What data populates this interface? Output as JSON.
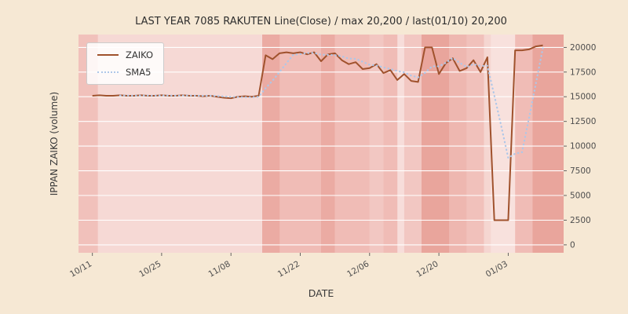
{
  "colors": {
    "figure_bg": "#f6e8d4",
    "plot_bg": "#fdf3f1",
    "band": "#d96456",
    "grid": "#ffffff",
    "text": "#3a3a3a",
    "tick_text": "#4d4d4d",
    "legend_border": "#cccccc"
  },
  "chart_data": {
    "type": "line",
    "title": "LAST YEAR 7085 RAKUTEN Line(Close) / max 20,200 / last(01/10) 20,200",
    "xlabel": "DATE",
    "ylabel": "IPPAN ZAIKO (volume)",
    "max_value": 20200,
    "last_date": "01/10",
    "last_value": 20200,
    "x_unit": "trading-day index",
    "xlim": [
      -2,
      68
    ],
    "ylim": [
      -800,
      21300
    ],
    "x_ticks": {
      "positions": [
        0,
        10,
        20,
        30,
        40,
        50,
        60
      ],
      "labels": [
        "10/11",
        "10/25",
        "11/08",
        "11/22",
        "12/06",
        "12/20",
        "01/03"
      ]
    },
    "y_ticks": [
      0,
      2500,
      5000,
      7500,
      10000,
      12500,
      15000,
      17500,
      20000
    ],
    "grid": {
      "horizontal": true,
      "color": "#ffffff"
    },
    "legend": {
      "position": "upper left",
      "entries": [
        "ZAIKO",
        "SMA5"
      ]
    },
    "series": [
      {
        "name": "ZAIKO",
        "line_style": "solid",
        "color": "#a0522d",
        "values": [
          15100,
          15150,
          15100,
          15100,
          15150,
          15100,
          15100,
          15150,
          15100,
          15100,
          15150,
          15100,
          15100,
          15150,
          15100,
          15100,
          15050,
          15100,
          15000,
          14900,
          14850,
          15000,
          15050,
          15000,
          15100,
          19200,
          18800,
          19400,
          19500,
          19400,
          19500,
          19300,
          19500,
          18600,
          19300,
          19400,
          18700,
          18300,
          18500,
          17800,
          17900,
          18300,
          17400,
          17700,
          16700,
          17300,
          16600,
          16500,
          20000,
          20000,
          17300,
          18400,
          18900,
          17600,
          17900,
          18700,
          17500,
          19000,
          2500,
          2500,
          2500,
          19700,
          19700,
          19800,
          20100,
          20200
        ]
      },
      {
        "name": "SMA5",
        "line_style": "dotted",
        "color": "#aec7e8",
        "derived": "5-day simple moving average of ZAIKO"
      }
    ],
    "background_bands": {
      "color": "#d96456",
      "intervals": [
        {
          "from": -2,
          "to": 0.8,
          "alpha": 0.35
        },
        {
          "from": 0.8,
          "to": 24.5,
          "alpha": 0.18
        },
        {
          "from": 24.5,
          "to": 27,
          "alpha": 0.5
        },
        {
          "from": 27,
          "to": 33,
          "alpha": 0.38
        },
        {
          "from": 33,
          "to": 35,
          "alpha": 0.5
        },
        {
          "from": 35,
          "to": 40,
          "alpha": 0.38
        },
        {
          "from": 40,
          "to": 42,
          "alpha": 0.3
        },
        {
          "from": 42,
          "to": 44,
          "alpha": 0.38
        },
        {
          "from": 44,
          "to": 45,
          "alpha": 0.15
        },
        {
          "from": 45,
          "to": 47.5,
          "alpha": 0.3
        },
        {
          "from": 47.5,
          "to": 51.5,
          "alpha": 0.55
        },
        {
          "from": 51.5,
          "to": 54,
          "alpha": 0.42
        },
        {
          "from": 54,
          "to": 56.5,
          "alpha": 0.35
        },
        {
          "from": 56.5,
          "to": 57.5,
          "alpha": 0.2
        },
        {
          "from": 57.5,
          "to": 61,
          "alpha": 0.12
        },
        {
          "from": 61,
          "to": 63.5,
          "alpha": 0.38
        },
        {
          "from": 63.5,
          "to": 68,
          "alpha": 0.55
        }
      ]
    }
  }
}
